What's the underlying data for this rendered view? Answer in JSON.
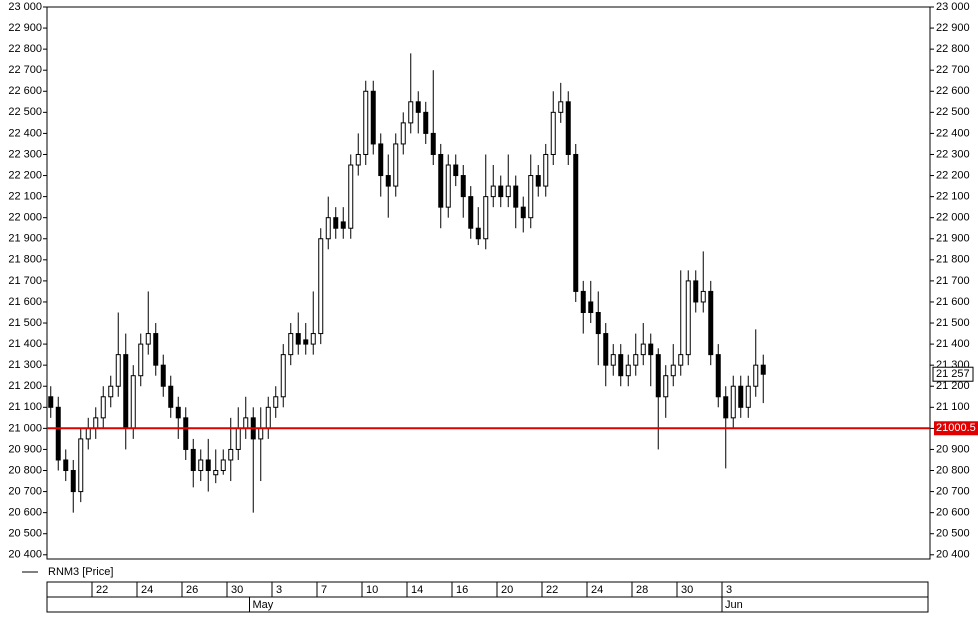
{
  "chart_data": {
    "type": "candlestick",
    "series": [
      {
        "name": "RNM3 [Price]",
        "color": "#000000",
        "open": [
          21150,
          21100,
          20850,
          20800,
          20700,
          20950,
          21000,
          21050,
          21150,
          21200,
          21350,
          21000,
          21250,
          21400,
          21450,
          21300,
          21200,
          21100,
          21050,
          20900,
          20800,
          20850,
          20780,
          20800,
          20850,
          20900,
          21000,
          21050,
          20950,
          21000,
          21100,
          21150,
          21350,
          21450,
          21420,
          21400,
          21450,
          21900,
          22000,
          21980,
          21950,
          22250,
          22300,
          22600,
          22350,
          22200,
          22150,
          22350,
          22450,
          22550,
          22500,
          22400,
          22300,
          22050,
          22250,
          22200,
          22100,
          21950,
          21900,
          22100,
          22150,
          22100,
          22150,
          22050,
          22000,
          22200,
          22150,
          22300,
          22500,
          22550,
          22300,
          21650,
          21600,
          21550,
          21450,
          21300,
          21350,
          21250,
          21300,
          21350,
          21400,
          21350,
          21150,
          21250,
          21300,
          21350,
          21700,
          21600,
          21650,
          21350,
          21150,
          21050,
          21200,
          21100,
          21200,
          21300
        ],
        "high": [
          21200,
          21150,
          20900,
          20850,
          21000,
          21050,
          21100,
          21200,
          21250,
          21550,
          21450,
          21300,
          21450,
          21650,
          21500,
          21350,
          21250,
          21150,
          21100,
          20950,
          20900,
          20950,
          20900,
          20900,
          21050,
          21100,
          21150,
          21100,
          21100,
          21150,
          21200,
          21400,
          21500,
          21550,
          21500,
          21650,
          21950,
          22100,
          22050,
          22050,
          22300,
          22400,
          22650,
          22650,
          22400,
          22300,
          22400,
          22500,
          22780,
          22600,
          22550,
          22700,
          22350,
          22300,
          22300,
          22250,
          22150,
          22050,
          22300,
          22250,
          22200,
          22300,
          22200,
          22100,
          22300,
          22250,
          22350,
          22600,
          22640,
          22600,
          22350,
          21700,
          21700,
          21650,
          21500,
          21400,
          21400,
          21350,
          21450,
          21500,
          21450,
          21380,
          21300,
          21400,
          21750,
          21750,
          21750,
          21840,
          21700,
          21400,
          21200,
          21250,
          21250,
          21250,
          21470,
          21350
        ],
        "low": [
          21050,
          20800,
          20750,
          20600,
          20650,
          20900,
          20950,
          21000,
          21100,
          21150,
          20900,
          20950,
          21200,
          21350,
          21250,
          21150,
          21050,
          20950,
          20850,
          20720,
          20750,
          20700,
          20740,
          20780,
          20750,
          20850,
          20950,
          20600,
          20750,
          20950,
          21050,
          21100,
          21300,
          21350,
          21350,
          21350,
          21400,
          21850,
          21900,
          21900,
          21900,
          22200,
          22250,
          22300,
          22100,
          22000,
          22100,
          22300,
          22400,
          22400,
          22350,
          22250,
          21950,
          22000,
          22150,
          22000,
          21900,
          21870,
          21850,
          22050,
          22050,
          22050,
          21950,
          21930,
          21950,
          22100,
          22100,
          22250,
          22450,
          22250,
          21600,
          21450,
          21500,
          21300,
          21200,
          21250,
          21200,
          21200,
          21250,
          21300,
          21200,
          20900,
          21050,
          21200,
          21250,
          21300,
          21550,
          21550,
          21300,
          21100,
          20810,
          21000,
          21050,
          21050,
          21150,
          21120
        ],
        "close": [
          21100,
          20850,
          20800,
          20700,
          20950,
          21000,
          21050,
          21150,
          21200,
          21350,
          21000,
          21250,
          21400,
          21450,
          21300,
          21200,
          21100,
          21050,
          20900,
          20800,
          20850,
          20800,
          20800,
          20850,
          20900,
          21000,
          21050,
          20950,
          21000,
          21100,
          21150,
          21350,
          21450,
          21400,
          21400,
          21450,
          21900,
          22000,
          21950,
          21950,
          22250,
          22300,
          22600,
          22350,
          22200,
          22150,
          22350,
          22450,
          22550,
          22500,
          22400,
          22300,
          22050,
          22250,
          22200,
          22100,
          21950,
          21900,
          22100,
          22150,
          22100,
          22150,
          22050,
          22000,
          22200,
          22150,
          22300,
          22500,
          22550,
          22300,
          21650,
          21550,
          21550,
          21450,
          21300,
          21350,
          21250,
          21300,
          21350,
          21400,
          21350,
          21150,
          21250,
          21300,
          21350,
          21700,
          21600,
          21650,
          21350,
          21150,
          21050,
          21200,
          21100,
          21200,
          21300,
          21257
        ]
      }
    ],
    "categories": [
      null,
      null,
      null,
      null,
      null,
      null,
      "22",
      null,
      null,
      null,
      null,
      null,
      "24",
      null,
      null,
      null,
      null,
      null,
      "26",
      null,
      null,
      null,
      null,
      null,
      "30",
      null,
      null,
      null,
      null,
      null,
      "3",
      null,
      null,
      null,
      null,
      null,
      "7",
      null,
      null,
      null,
      null,
      null,
      "10",
      null,
      null,
      null,
      null,
      null,
      "14",
      null,
      null,
      null,
      null,
      null,
      "16",
      null,
      null,
      null,
      null,
      null,
      "20",
      null,
      null,
      null,
      null,
      null,
      "22",
      null,
      null,
      null,
      null,
      null,
      "24",
      null,
      null,
      null,
      null,
      null,
      "28",
      null,
      null,
      null,
      null,
      null,
      "30",
      null,
      null,
      null,
      null,
      null,
      "3",
      null,
      null,
      null,
      null,
      null
    ],
    "months": [
      null,
      null,
      null,
      null,
      null,
      null,
      null,
      null,
      null,
      null,
      null,
      null,
      null,
      null,
      null,
      null,
      null,
      null,
      null,
      null,
      null,
      null,
      null,
      null,
      null,
      null,
      null,
      "May",
      null,
      null,
      null,
      null,
      null,
      null,
      null,
      null,
      null,
      null,
      null,
      null,
      null,
      null,
      null,
      null,
      null,
      null,
      null,
      null,
      null,
      null,
      null,
      null,
      null,
      null,
      null,
      null,
      null,
      null,
      null,
      null,
      null,
      null,
      null,
      null,
      null,
      null,
      null,
      null,
      null,
      null,
      null,
      null,
      null,
      null,
      null,
      null,
      null,
      null,
      null,
      null,
      null,
      null,
      null,
      null,
      null,
      null,
      null,
      null,
      null,
      null,
      "Jun",
      null,
      null,
      null,
      null,
      null
    ],
    "ylim": [
      20380,
      23000
    ],
    "yticks": [
      {
        "value": 20400,
        "label": "20 400"
      },
      {
        "value": 20500,
        "label": "20 500"
      },
      {
        "value": 20600,
        "label": "20 600"
      },
      {
        "value": 20700,
        "label": "20 700"
      },
      {
        "value": 20800,
        "label": "20 800"
      },
      {
        "value": 20900,
        "label": "20 900"
      },
      {
        "value": 21000,
        "label": "21 000"
      },
      {
        "value": 21100,
        "label": "21 100"
      },
      {
        "value": 21200,
        "label": "21 200"
      },
      {
        "value": 21300,
        "label": "21 300"
      },
      {
        "value": 21400,
        "label": "21 400"
      },
      {
        "value": 21500,
        "label": "21 500"
      },
      {
        "value": 21600,
        "label": "21 600"
      },
      {
        "value": 21700,
        "label": "21 700"
      },
      {
        "value": 21800,
        "label": "21 800"
      },
      {
        "value": 21900,
        "label": "21 900"
      },
      {
        "value": 22000,
        "label": "22 000"
      },
      {
        "value": 22100,
        "label": "22 100"
      },
      {
        "value": 22200,
        "label": "22 200"
      },
      {
        "value": 22300,
        "label": "22 300"
      },
      {
        "value": 22400,
        "label": "22 400"
      },
      {
        "value": 22500,
        "label": "22 500"
      },
      {
        "value": 22600,
        "label": "22 600"
      },
      {
        "value": 22700,
        "label": "22 700"
      },
      {
        "value": 22800,
        "label": "22 800"
      },
      {
        "value": 22900,
        "label": "22 900"
      },
      {
        "value": 23000,
        "label": "23 000"
      }
    ],
    "reference_line": {
      "value": 21000.5,
      "color": "#e00000"
    },
    "last_price": {
      "value": 21257,
      "label": "21 257"
    }
  }
}
